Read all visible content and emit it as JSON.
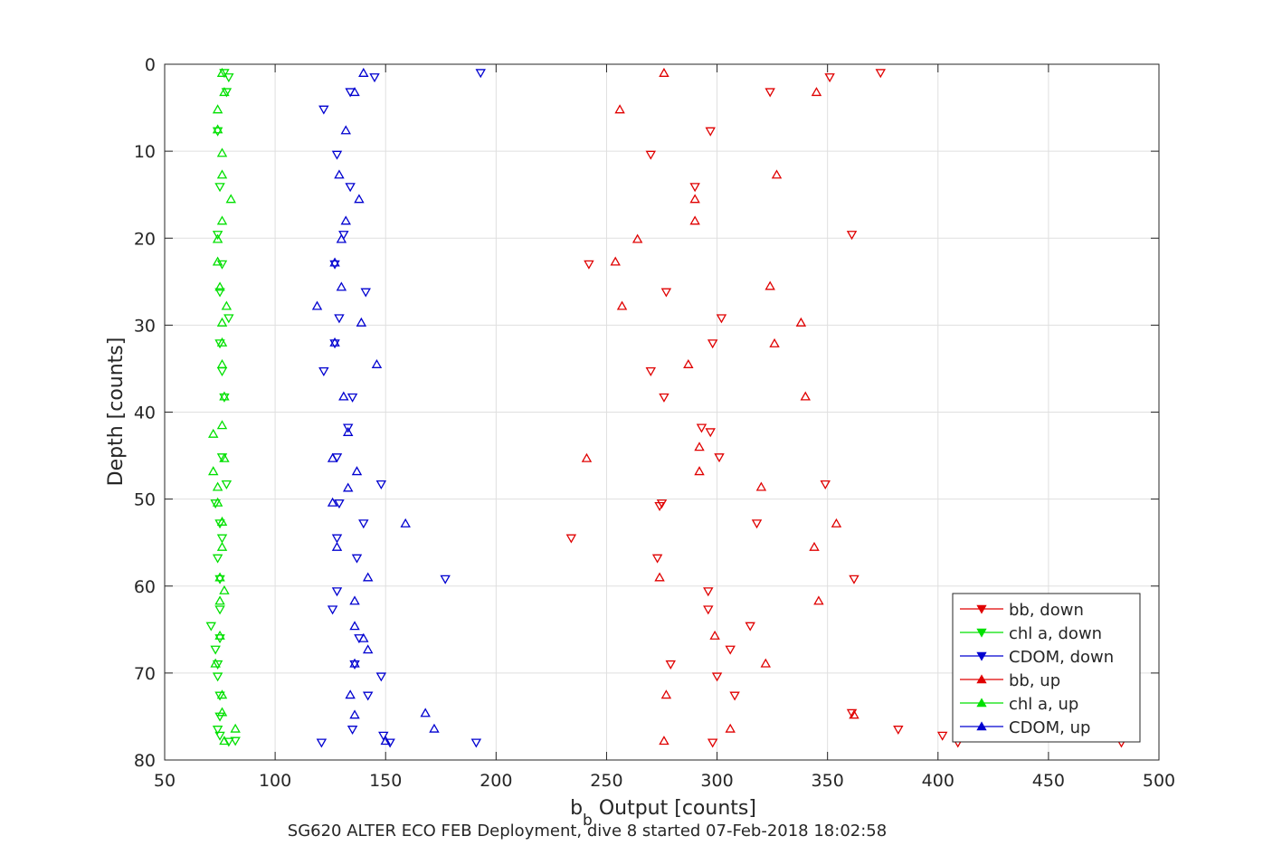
{
  "chart_data": {
    "type": "scatter",
    "title": "",
    "xlabel_main": "b",
    "xlabel_sub": "b",
    "xlabel_rest": " Output [counts]",
    "ylabel": "Depth [counts]",
    "caption": "SG620 ALTER ECO FEB Deployment, dive 8 started 07-Feb-2018 18:02:58",
    "xlim": [
      50,
      500
    ],
    "ylim": [
      0,
      80
    ],
    "y_reversed": true,
    "grid": true,
    "legend_position": "bottom-right",
    "xticks": [
      "50",
      "100",
      "150",
      "200",
      "250",
      "300",
      "350",
      "400",
      "450",
      "500"
    ],
    "yticks": [
      "0",
      "10",
      "20",
      "30",
      "40",
      "50",
      "60",
      "70",
      "80"
    ],
    "series": [
      {
        "name": "bb, down",
        "marker": "triangle-down",
        "color": "#e00000",
        "points": [
          [
            374,
            1
          ],
          [
            351,
            1.5
          ],
          [
            324,
            3.2
          ],
          [
            297,
            7.7
          ],
          [
            270,
            10.4
          ],
          [
            290,
            14.1
          ],
          [
            361,
            19.6
          ],
          [
            242,
            23
          ],
          [
            277,
            26.2
          ],
          [
            302,
            29.2
          ],
          [
            298,
            32.1
          ],
          [
            270,
            35.3
          ],
          [
            276,
            38.3
          ],
          [
            293,
            41.8
          ],
          [
            297,
            42.3
          ],
          [
            301,
            45.2
          ],
          [
            349,
            48.3
          ],
          [
            275,
            50.5
          ],
          [
            274,
            50.8
          ],
          [
            318,
            52.8
          ],
          [
            234,
            54.5
          ],
          [
            273,
            56.8
          ],
          [
            362,
            59.2
          ],
          [
            296,
            60.6
          ],
          [
            296,
            62.7
          ],
          [
            315,
            64.6
          ],
          [
            306,
            67.3
          ],
          [
            279,
            69
          ],
          [
            300,
            70.4
          ],
          [
            308,
            72.6
          ],
          [
            361,
            74.6
          ],
          [
            382,
            76.5
          ],
          [
            402,
            77.2
          ],
          [
            298,
            78
          ],
          [
            409,
            78
          ],
          [
            483,
            78
          ]
        ]
      },
      {
        "name": "chl a, down",
        "marker": "triangle-down",
        "color": "#00e000",
        "points": [
          [
            77,
            1
          ],
          [
            79,
            1.5
          ],
          [
            78,
            3.2
          ],
          [
            74,
            7.7
          ],
          [
            75,
            14.1
          ],
          [
            74,
            19.6
          ],
          [
            76,
            23
          ],
          [
            75,
            26.2
          ],
          [
            79,
            29.2
          ],
          [
            75,
            32.1
          ],
          [
            76,
            35.3
          ],
          [
            77,
            38.3
          ],
          [
            76,
            45.2
          ],
          [
            78,
            48.3
          ],
          [
            73,
            50.5
          ],
          [
            75,
            52.8
          ],
          [
            76,
            54.5
          ],
          [
            74,
            56.8
          ],
          [
            75,
            59.2
          ],
          [
            75,
            62.7
          ],
          [
            71,
            64.6
          ],
          [
            75,
            66
          ],
          [
            73,
            67.3
          ],
          [
            74,
            69
          ],
          [
            74,
            70.4
          ],
          [
            75,
            72.6
          ],
          [
            75,
            75
          ],
          [
            74,
            76.5
          ],
          [
            75,
            77.2
          ],
          [
            79,
            77.9
          ],
          [
            82,
            77.8
          ]
        ]
      },
      {
        "name": "CDOM, down",
        "marker": "triangle-down",
        "color": "#0000d0",
        "points": [
          [
            193,
            1
          ],
          [
            145,
            1.5
          ],
          [
            134,
            3.2
          ],
          [
            122,
            5.2
          ],
          [
            128,
            10.4
          ],
          [
            134,
            14.1
          ],
          [
            131,
            19.6
          ],
          [
            127,
            23
          ],
          [
            141,
            26.2
          ],
          [
            129,
            29.2
          ],
          [
            127,
            32.1
          ],
          [
            122,
            35.3
          ],
          [
            135,
            38.3
          ],
          [
            133,
            41.8
          ],
          [
            128,
            45.2
          ],
          [
            148,
            48.3
          ],
          [
            129,
            50.5
          ],
          [
            140,
            52.8
          ],
          [
            128,
            54.5
          ],
          [
            137,
            56.8
          ],
          [
            177,
            59.2
          ],
          [
            128,
            60.6
          ],
          [
            126,
            62.7
          ],
          [
            138,
            66
          ],
          [
            136,
            69
          ],
          [
            148,
            70.4
          ],
          [
            142,
            72.6
          ],
          [
            135,
            76.5
          ],
          [
            149,
            77.2
          ],
          [
            121,
            78
          ],
          [
            152,
            78
          ],
          [
            191,
            78
          ]
        ]
      },
      {
        "name": "bb, up",
        "marker": "triangle-up",
        "color": "#e00000",
        "points": [
          [
            276,
            1
          ],
          [
            345,
            3.2
          ],
          [
            256,
            5.2
          ],
          [
            327,
            12.7
          ],
          [
            290,
            15.5
          ],
          [
            290,
            18
          ],
          [
            264,
            20.1
          ],
          [
            254,
            22.7
          ],
          [
            324,
            25.5
          ],
          [
            257,
            27.8
          ],
          [
            338,
            29.7
          ],
          [
            326,
            32.1
          ],
          [
            287,
            34.5
          ],
          [
            340,
            38.2
          ],
          [
            292,
            44
          ],
          [
            241,
            45.3
          ],
          [
            292,
            46.8
          ],
          [
            320,
            48.6
          ],
          [
            354,
            52.8
          ],
          [
            344,
            55.5
          ],
          [
            274,
            59
          ],
          [
            346,
            61.7
          ],
          [
            299,
            65.7
          ],
          [
            322,
            68.9
          ],
          [
            277,
            72.5
          ],
          [
            362,
            74.8
          ],
          [
            306,
            76.4
          ],
          [
            276,
            77.8
          ]
        ]
      },
      {
        "name": "chl a, up",
        "marker": "triangle-up",
        "color": "#00e000",
        "points": [
          [
            76,
            1
          ],
          [
            77,
            3.2
          ],
          [
            74,
            5.2
          ],
          [
            74,
            7.5
          ],
          [
            76,
            10.2
          ],
          [
            76,
            12.7
          ],
          [
            80,
            15.5
          ],
          [
            76,
            18
          ],
          [
            74,
            20.1
          ],
          [
            74,
            22.7
          ],
          [
            75,
            25.6
          ],
          [
            78,
            27.8
          ],
          [
            76,
            29.7
          ],
          [
            76,
            32
          ],
          [
            76,
            34.5
          ],
          [
            77,
            38.2
          ],
          [
            76,
            41.5
          ],
          [
            72,
            42.5
          ],
          [
            77,
            45.3
          ],
          [
            72,
            46.8
          ],
          [
            74,
            48.6
          ],
          [
            74,
            50.4
          ],
          [
            76,
            52.6
          ],
          [
            76,
            55.5
          ],
          [
            75,
            59
          ],
          [
            77,
            60.5
          ],
          [
            75,
            61.7
          ],
          [
            75,
            65.7
          ],
          [
            73,
            68.9
          ],
          [
            76,
            72.5
          ],
          [
            76,
            74.5
          ],
          [
            82,
            76.4
          ],
          [
            77,
            77.8
          ]
        ]
      },
      {
        "name": "CDOM, up",
        "marker": "triangle-up",
        "color": "#0000d0",
        "points": [
          [
            140,
            1
          ],
          [
            136,
            3.2
          ],
          [
            132,
            7.6
          ],
          [
            129,
            12.7
          ],
          [
            138,
            15.5
          ],
          [
            132,
            18
          ],
          [
            130,
            20.1
          ],
          [
            127,
            22.8
          ],
          [
            130,
            25.6
          ],
          [
            119,
            27.8
          ],
          [
            139,
            29.7
          ],
          [
            127,
            32
          ],
          [
            146,
            34.5
          ],
          [
            131,
            38.2
          ],
          [
            133,
            42.3
          ],
          [
            126,
            45.3
          ],
          [
            137,
            46.8
          ],
          [
            133,
            48.7
          ],
          [
            126,
            50.4
          ],
          [
            159,
            52.8
          ],
          [
            128,
            55.5
          ],
          [
            142,
            59
          ],
          [
            136,
            61.7
          ],
          [
            136,
            64.6
          ],
          [
            140,
            66
          ],
          [
            142,
            67.3
          ],
          [
            136,
            68.9
          ],
          [
            134,
            72.5
          ],
          [
            136,
            74.8
          ],
          [
            168,
            74.6
          ],
          [
            172,
            76.4
          ],
          [
            150,
            77.8
          ]
        ]
      }
    ]
  }
}
